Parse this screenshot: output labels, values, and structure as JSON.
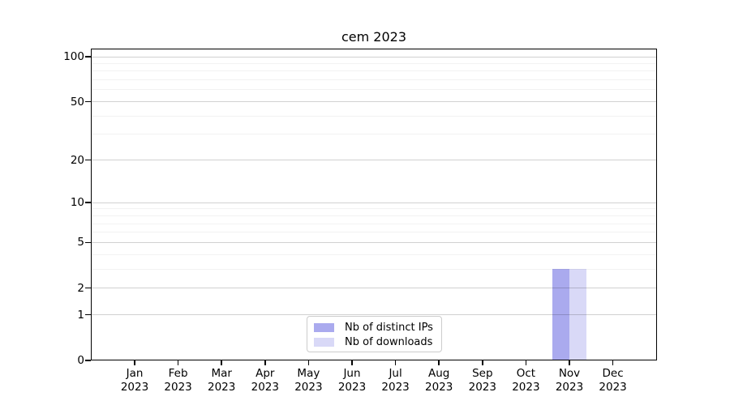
{
  "chart_data": {
    "type": "bar",
    "title": "cem 2023",
    "categories": [
      "Jan 2023",
      "Feb 2023",
      "Mar 2023",
      "Apr 2023",
      "May 2023",
      "Jun 2023",
      "Jul 2023",
      "Aug 2023",
      "Sep 2023",
      "Oct 2023",
      "Nov 2023",
      "Dec 2023"
    ],
    "series": [
      {
        "name": "Nb of distinct IPs",
        "color": "#aaaaee",
        "values": [
          0,
          0,
          0,
          0,
          0,
          0,
          0,
          0,
          0,
          0,
          3,
          0
        ]
      },
      {
        "name": "Nb of downloads",
        "color": "#d9d9f7",
        "values": [
          0,
          0,
          0,
          0,
          0,
          0,
          0,
          0,
          0,
          0,
          3,
          0
        ]
      }
    ],
    "xlabel": "",
    "ylabel": "",
    "ylim": [
      0,
      100
    ],
    "y_scale": "log1p",
    "y_ticks": [
      0,
      1,
      2,
      5,
      10,
      20,
      50,
      100
    ],
    "y_minor_ticks": [
      3,
      4,
      6,
      7,
      8,
      9,
      30,
      40,
      60,
      70,
      80,
      90
    ],
    "grid": true,
    "legend_position": "lower center"
  }
}
